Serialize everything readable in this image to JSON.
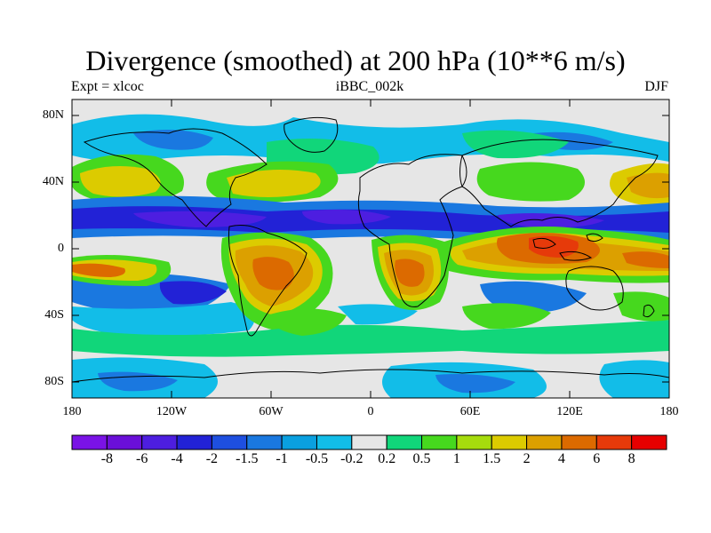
{
  "title": "Divergence (smoothed) at 200 hPa (10**6 m/s)",
  "subtitle_left": "Expt = xlcoc",
  "subtitle_center": "iBBC_002k",
  "subtitle_right": "DJF",
  "lat_labels": [
    "80N",
    "40N",
    "0",
    "40S",
    "80S"
  ],
  "lon_labels": [
    "180",
    "120W",
    "60W",
    "0",
    "60E",
    "120E",
    "180"
  ],
  "colorbar": {
    "colors": [
      "#7a13e6",
      "#6a0fd8",
      "#4d1ee0",
      "#2222d6",
      "#1e4fe0",
      "#1a78e0",
      "#0aa0e0",
      "#12bde8",
      "#e6e6e6",
      "#11d67a",
      "#46d81e",
      "#a6dc0d",
      "#dccb00",
      "#dca000",
      "#dc6a00",
      "#e63a0a",
      "#e60000"
    ],
    "labels": [
      "-8",
      "-6",
      "-4",
      "-2",
      "-1.5",
      "-1",
      "-0.5",
      "-0.2",
      "0.2",
      "0.5",
      "1",
      "1.5",
      "2",
      "4",
      "6",
      "8"
    ]
  },
  "map_palette": {
    "neutral": "#e6e6e6",
    "strong_conv": "#2222d6",
    "deep_conv": "#4d1ee0",
    "med_conv": "#1a78e0",
    "weak_conv": "#12bde8",
    "weak_div": "#11d67a",
    "med_div": "#46d81e",
    "yellow_div": "#dccb00",
    "orange_div": "#dca000",
    "strong_div": "#dc6a00",
    "max_div": "#e63a0a"
  }
}
